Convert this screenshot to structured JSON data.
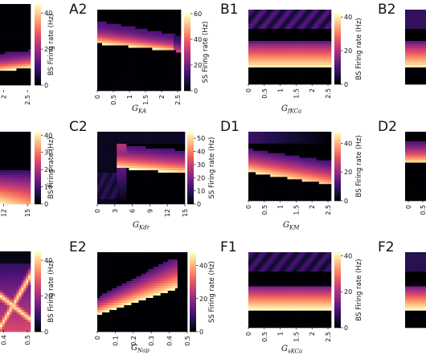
{
  "colors": {
    "background": "#ffffff",
    "text": "#111111"
  },
  "colormap": "magma",
  "chart_data": [
    {
      "id": "A1",
      "type": "heatmap",
      "panel_label": "",
      "xlabel": "",
      "x_ticks": [
        "2",
        "2.5"
      ],
      "x_range": [
        0,
        2.6
      ],
      "colorbar": {
        "label": "BS Firing rate (Hz)",
        "ticks": [
          "0",
          "20",
          "40"
        ],
        "range": [
          0,
          45
        ]
      },
      "pattern": "A1"
    },
    {
      "id": "A2",
      "type": "heatmap",
      "panel_label": "A2",
      "xlabel": "G",
      "xlabel_sub": "KA",
      "x_ticks": [
        "0",
        "0.5",
        "1",
        "1.5",
        "2",
        "2.5"
      ],
      "x_range": [
        0,
        2.6
      ],
      "colorbar": {
        "label": "SS Firing rate (Hz)",
        "ticks": [
          "0",
          "20",
          "40",
          "60"
        ],
        "range": [
          0,
          60
        ]
      },
      "pattern": "A2"
    },
    {
      "id": "B1",
      "type": "heatmap",
      "panel_label": "B1",
      "xlabel": "G",
      "xlabel_sub": "fKCa",
      "x_ticks": [
        "0",
        "0.5",
        "1",
        "1.5",
        "2",
        "2.5"
      ],
      "x_range": [
        0,
        2.6
      ],
      "colorbar": {
        "label": "BS Firing rate (Hz)",
        "ticks": [
          "0",
          "20",
          "40"
        ],
        "range": [
          0,
          42
        ]
      },
      "pattern": "B1"
    },
    {
      "id": "B2",
      "type": "heatmap",
      "panel_label": "B2",
      "xlabel": "",
      "x_ticks": [],
      "x_range": [
        0,
        2.6
      ],
      "pattern": "B2"
    },
    {
      "id": "C1",
      "type": "heatmap",
      "panel_label": "",
      "xlabel": "",
      "x_ticks": [
        "12",
        "15"
      ],
      "x_range": [
        0,
        15
      ],
      "colorbar": {
        "label": "BS Firing rate (Hz)",
        "ticks": [
          "0",
          "10",
          "20",
          "30",
          "40"
        ],
        "range": [
          0,
          42
        ]
      },
      "pattern": "C1"
    },
    {
      "id": "C2",
      "type": "heatmap",
      "panel_label": "C2",
      "xlabel": "G",
      "xlabel_sub": "Kdr",
      "x_ticks": [
        "0",
        "3",
        "6",
        "9",
        "12",
        "15"
      ],
      "x_range": [
        0,
        15
      ],
      "colorbar": {
        "label": "SS Firing rate (Hz)",
        "ticks": [
          "0",
          "10",
          "20",
          "30",
          "40",
          "50"
        ],
        "range": [
          0,
          55
        ]
      },
      "pattern": "C2"
    },
    {
      "id": "D1",
      "type": "heatmap",
      "panel_label": "D1",
      "xlabel": "G",
      "xlabel_sub": "KM",
      "x_ticks": [
        "0",
        "0.5",
        "1",
        "1.5",
        "2",
        "2.5"
      ],
      "x_range": [
        0,
        2.6
      ],
      "colorbar": {
        "label": "BS Firing rate (Hz)",
        "ticks": [
          "0",
          "20",
          "40"
        ],
        "range": [
          0,
          48
        ]
      },
      "pattern": "D1"
    },
    {
      "id": "D2",
      "type": "heatmap",
      "panel_label": "D2",
      "xlabel": "",
      "x_ticks": [
        "0",
        "0.5"
      ],
      "x_range": [
        0,
        2.6
      ],
      "pattern": "D2"
    },
    {
      "id": "E1",
      "type": "heatmap",
      "panel_label": "",
      "xlabel": "",
      "x_ticks": [
        "0.4",
        "0.5"
      ],
      "x_range": [
        0,
        0.5
      ],
      "colorbar": {
        "label": "BS Firing rate (Hz)",
        "ticks": [
          "0",
          "20",
          "40"
        ],
        "range": [
          0,
          45
        ]
      },
      "pattern": "E1"
    },
    {
      "id": "E2",
      "type": "heatmap",
      "panel_label": "E2",
      "xlabel": "G",
      "xlabel_sub": "Nap",
      "x_ticks": [
        "0",
        "0.1",
        "0.2",
        "0.3",
        "0.4",
        "0.5"
      ],
      "x_range": [
        0,
        0.5
      ],
      "colorbar": {
        "label": "SS Firing rate (Hz)",
        "ticks": [
          "0",
          "20",
          "40"
        ],
        "range": [
          0,
          48
        ]
      },
      "pattern": "E2"
    },
    {
      "id": "F1",
      "type": "heatmap",
      "panel_label": "F1",
      "xlabel": "G",
      "xlabel_sub": "sKCa",
      "x_ticks": [
        "0",
        "0.5",
        "1",
        "1.5",
        "2",
        "2.5"
      ],
      "x_range": [
        0,
        2.6
      ],
      "colorbar": {
        "label": "BS Firing rate (Hz)",
        "ticks": [
          "0",
          "20",
          "40"
        ],
        "range": [
          0,
          42
        ]
      },
      "pattern": "F1"
    },
    {
      "id": "F2",
      "type": "heatmap",
      "panel_label": "F2",
      "xlabel": "",
      "x_ticks": [],
      "x_range": [
        0,
        2.6
      ],
      "pattern": "F2"
    }
  ]
}
